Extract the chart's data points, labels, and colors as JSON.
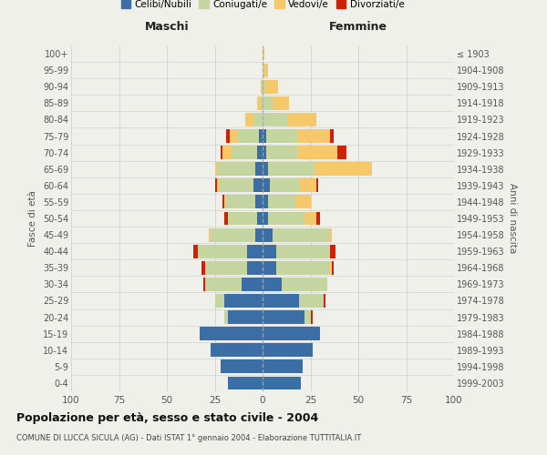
{
  "age_groups": [
    "0-4",
    "5-9",
    "10-14",
    "15-19",
    "20-24",
    "25-29",
    "30-34",
    "35-39",
    "40-44",
    "45-49",
    "50-54",
    "55-59",
    "60-64",
    "65-69",
    "70-74",
    "75-79",
    "80-84",
    "85-89",
    "90-94",
    "95-99",
    "100+"
  ],
  "birth_years": [
    "1999-2003",
    "1994-1998",
    "1989-1993",
    "1984-1988",
    "1979-1983",
    "1974-1978",
    "1969-1973",
    "1964-1968",
    "1959-1963",
    "1954-1958",
    "1949-1953",
    "1944-1948",
    "1939-1943",
    "1934-1938",
    "1929-1933",
    "1924-1928",
    "1919-1923",
    "1914-1918",
    "1909-1913",
    "1904-1908",
    "≤ 1903"
  ],
  "colors": {
    "celibi": "#3a6ea5",
    "coniugati": "#c5d5a0",
    "vedovi": "#f5c96a",
    "divorziati": "#cc2200"
  },
  "maschi": {
    "celibi": [
      18,
      22,
      27,
      33,
      18,
      20,
      11,
      8,
      8,
      4,
      3,
      4,
      5,
      4,
      3,
      2,
      0,
      0,
      0,
      0,
      0
    ],
    "coniugati": [
      0,
      0,
      0,
      0,
      2,
      5,
      19,
      22,
      26,
      23,
      15,
      15,
      18,
      20,
      13,
      11,
      5,
      1,
      0,
      0,
      0
    ],
    "vedovi": [
      0,
      0,
      0,
      0,
      0,
      0,
      0,
      0,
      0,
      1,
      0,
      1,
      1,
      1,
      5,
      4,
      4,
      2,
      1,
      0,
      0
    ],
    "divorziati": [
      0,
      0,
      0,
      0,
      0,
      0,
      1,
      2,
      2,
      0,
      2,
      1,
      1,
      0,
      1,
      2,
      0,
      0,
      0,
      0,
      0
    ]
  },
  "femmine": {
    "celibi": [
      20,
      21,
      26,
      30,
      22,
      19,
      10,
      7,
      7,
      5,
      3,
      3,
      4,
      3,
      2,
      2,
      0,
      0,
      0,
      0,
      0
    ],
    "coniugati": [
      0,
      0,
      0,
      0,
      3,
      13,
      24,
      28,
      28,
      30,
      19,
      14,
      15,
      24,
      16,
      16,
      13,
      5,
      2,
      1,
      0
    ],
    "vedovi": [
      0,
      0,
      0,
      0,
      0,
      0,
      0,
      1,
      0,
      1,
      6,
      8,
      9,
      30,
      21,
      17,
      15,
      9,
      6,
      2,
      1
    ],
    "divorziati": [
      0,
      0,
      0,
      0,
      1,
      1,
      0,
      1,
      3,
      0,
      2,
      0,
      1,
      0,
      5,
      2,
      0,
      0,
      0,
      0,
      0
    ]
  },
  "xlim": 100,
  "xtick_step": 25,
  "title": "Popolazione per età, sesso e stato civile - 2004",
  "subtitle": "COMUNE DI LUCCA SICULA (AG) - Dati ISTAT 1° gennaio 2004 - Elaborazione TUTTITALIA.IT",
  "ylabel_left": "Fasce di età",
  "ylabel_right": "Anni di nascita",
  "xlabel_left": "Maschi",
  "xlabel_right": "Femmine",
  "background_color": "#f0f0eb",
  "grid_color": "#cccccc",
  "bar_height": 0.82,
  "legend_labels": [
    "Celibi/Nubili",
    "Coniugati/e",
    "Vedovi/e",
    "Divorziati/e"
  ]
}
